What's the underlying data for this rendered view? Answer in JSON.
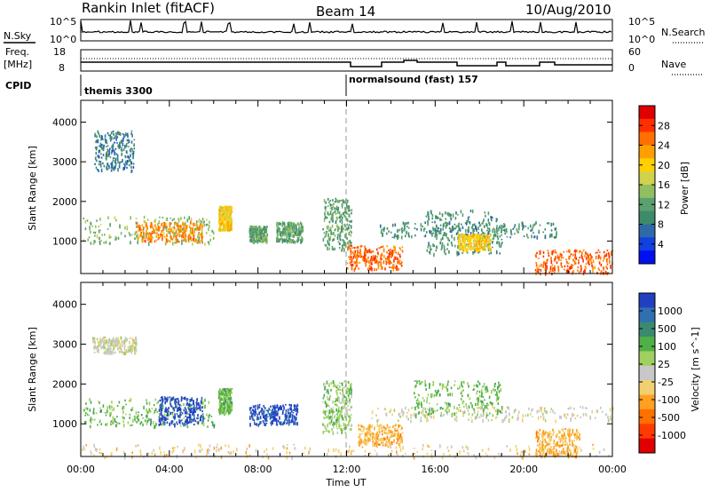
{
  "header": {
    "station": "Rankin Inlet (fitACF)",
    "beam": "Beam 14",
    "date": "10/Aug/2010"
  },
  "top_panels": {
    "nsky_label": "N.Sky",
    "nsky_ticks": [
      "10^5",
      "10^0"
    ],
    "nsearch_label": "N.Search",
    "nsearch_ticks": [
      "10^5",
      "10^0"
    ],
    "freq_label": "Freq.",
    "freq_unit": "[MHz]",
    "freq_ticks": [
      "18",
      "8"
    ],
    "nave_label": "Nave",
    "nave_ticks": [
      "60",
      "0"
    ],
    "cpid_label": "CPID",
    "cpid_segments": [
      "themis 3300",
      "normalsound (fast) 157"
    ]
  },
  "axes": {
    "x_ticks": [
      "00:00",
      "04:00",
      "08:00",
      "12:00",
      "16:00",
      "20:00",
      "00:00"
    ],
    "x_label": "Time UT",
    "y_ticks": [
      "4000",
      "3000",
      "2000",
      "1000"
    ],
    "y_label": "Slant Range [km]"
  },
  "colorbars": {
    "power": {
      "label": "Power [dB]",
      "ticks": [
        "28",
        "24",
        "20",
        "16",
        "12",
        "8",
        "4"
      ],
      "colors": [
        "#e00000",
        "#ff3000",
        "#ff7000",
        "#ffa000",
        "#ffd000",
        "#cfd24a",
        "#8fbf60",
        "#5aa070",
        "#3f8a6a",
        "#2f6aa8",
        "#1040e0",
        "#0010f0"
      ]
    },
    "velocity": {
      "label": "Velocity [m s^-1]",
      "ticks": [
        "1000",
        "500",
        "100",
        "25",
        "-25",
        "-100",
        "-500",
        "-1000"
      ],
      "colors": [
        "#2040c0",
        "#3070b0",
        "#3a8a70",
        "#50b048",
        "#a0d060",
        "#c8c8c8",
        "#f0d070",
        "#ffa020",
        "#ff7000",
        "#ff3a00",
        "#e00000"
      ]
    }
  },
  "chart_data": [
    {
      "type": "heatmap",
      "title": "Power",
      "xlabel": "Time UT",
      "ylabel": "Slant Range [km]",
      "xlim": [
        0,
        24
      ],
      "ylim": [
        180,
        4550
      ],
      "colorbar_label": "Power [dB]",
      "colorbar_range": [
        0,
        32
      ],
      "x_unit": "hours UT",
      "y_unit": "km",
      "regions": [
        {
          "x": [
            0.1,
            6.0
          ],
          "y": [
            950,
            1650
          ],
          "value": 14
        },
        {
          "x": [
            2.5,
            5.5
          ],
          "y": [
            1000,
            1500
          ],
          "value": 24
        },
        {
          "x": [
            0.6,
            2.4
          ],
          "y": [
            2800,
            3800
          ],
          "value": 8
        },
        {
          "x": [
            6.2,
            6.8
          ],
          "y": [
            1300,
            1900
          ],
          "value": 20
        },
        {
          "x": [
            7.6,
            8.4
          ],
          "y": [
            1000,
            1400
          ],
          "value": 12
        },
        {
          "x": [
            8.8,
            10.0
          ],
          "y": [
            1000,
            1500
          ],
          "value": 12
        },
        {
          "x": [
            10.9,
            12.2
          ],
          "y": [
            800,
            2100
          ],
          "value": 12
        },
        {
          "x": [
            12.0,
            14.5
          ],
          "y": [
            300,
            900
          ],
          "value": 26
        },
        {
          "x": [
            13.5,
            21.5
          ],
          "y": [
            1100,
            1500
          ],
          "value": 10
        },
        {
          "x": [
            15.5,
            19.0
          ],
          "y": [
            700,
            1800
          ],
          "value": 10
        },
        {
          "x": [
            20.5,
            24.0
          ],
          "y": [
            200,
            800
          ],
          "value": 26
        },
        {
          "x": [
            17.0,
            18.5
          ],
          "y": [
            800,
            1200
          ],
          "value": 20
        }
      ]
    },
    {
      "type": "heatmap",
      "title": "Velocity",
      "xlabel": "Time UT",
      "ylabel": "Slant Range [km]",
      "xlim": [
        0,
        24
      ],
      "ylim": [
        180,
        4550
      ],
      "colorbar_label": "Velocity [m s^-1]",
      "colorbar_range": [
        -1000,
        1000
      ],
      "x_unit": "hours UT",
      "y_unit": "km",
      "regions": [
        {
          "x": [
            0.1,
            6.0
          ],
          "y": [
            950,
            1650
          ],
          "value": 300
        },
        {
          "x": [
            3.5,
            5.5
          ],
          "y": [
            1000,
            1700
          ],
          "value": 900
        },
        {
          "x": [
            0.5,
            2.5
          ],
          "y": [
            2800,
            3200
          ],
          "value": 0
        },
        {
          "x": [
            6.2,
            6.8
          ],
          "y": [
            1300,
            1900
          ],
          "value": 300
        },
        {
          "x": [
            7.6,
            9.8
          ],
          "y": [
            1000,
            1500
          ],
          "value": 900
        },
        {
          "x": [
            10.9,
            12.2
          ],
          "y": [
            800,
            2100
          ],
          "value": 200
        },
        {
          "x": [
            12.5,
            14.5
          ],
          "y": [
            500,
            1000
          ],
          "value": -300
        },
        {
          "x": [
            13.0,
            24.0
          ],
          "y": [
            1100,
            1450
          ],
          "value": 0
        },
        {
          "x": [
            15.0,
            19.0
          ],
          "y": [
            1200,
            2100
          ],
          "value": 300
        },
        {
          "x": [
            20.5,
            22.5
          ],
          "y": [
            200,
            900
          ],
          "value": -300
        },
        {
          "x": [
            0.0,
            24.0
          ],
          "y": [
            180,
            500
          ],
          "value": -150
        }
      ]
    }
  ]
}
